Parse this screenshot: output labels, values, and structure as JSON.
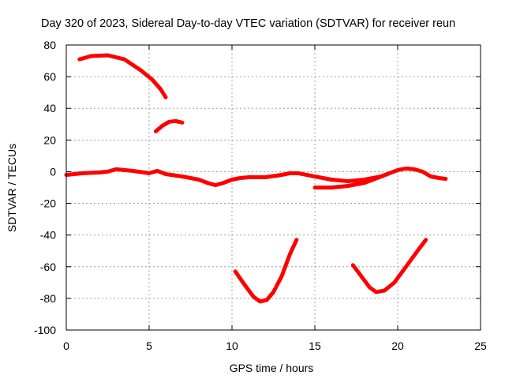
{
  "chart_data": {
    "type": "line",
    "title": "Day 320 of 2023, Sidereal Day-to-day VTEC variation (SDTVAR) for receiver reun",
    "xlabel": "GPS time / hours",
    "ylabel": "SDTVAR / TECUs",
    "xlim": [
      0,
      25
    ],
    "ylim": [
      -100,
      80
    ],
    "xticks": [
      0,
      5,
      10,
      15,
      20,
      25
    ],
    "yticks": [
      -100,
      -80,
      -60,
      -40,
      -20,
      0,
      20,
      40,
      60,
      80
    ],
    "grid": true,
    "color": "#ff0000",
    "series": [
      {
        "name": "near-zero-track",
        "x": [
          0,
          1,
          2,
          2.5,
          3,
          3.5,
          4,
          5,
          5.5,
          6,
          7,
          8,
          8.5,
          9,
          9.5,
          10,
          10.5,
          11,
          12,
          13,
          13.5,
          14,
          15,
          16,
          17,
          18,
          19,
          19.5,
          20,
          20.5,
          21,
          21.5,
          22,
          22.5,
          22.9
        ],
        "y": [
          -2,
          -1,
          -0.5,
          0,
          1.5,
          1,
          0.5,
          -1,
          0.5,
          -1.5,
          -3,
          -5,
          -7,
          -8.5,
          -7,
          -5,
          -4,
          -3.5,
          -3.5,
          -2,
          -1,
          -1,
          -3,
          -5,
          -6,
          -5,
          -3,
          -1,
          1,
          2,
          1.5,
          0,
          -3,
          -4,
          -4.5
        ]
      },
      {
        "name": "offset-track",
        "x": [
          15,
          16,
          17,
          18,
          18.5,
          19,
          19.5
        ],
        "y": [
          -10,
          -10,
          -9,
          -7,
          -5,
          -3,
          -1
        ]
      },
      {
        "name": "upper-arc-1",
        "x": [
          0.8,
          1.5,
          2.5,
          3.5,
          4.5,
          5.2,
          5.7,
          6.0
        ],
        "y": [
          71,
          73,
          73.5,
          71,
          64,
          58,
          52,
          47
        ]
      },
      {
        "name": "upper-arc-2",
        "x": [
          5.4,
          5.8,
          6.2,
          6.6,
          7.0
        ],
        "y": [
          25.5,
          29,
          31.5,
          32,
          31
        ]
      },
      {
        "name": "lower-arc-1",
        "x": [
          10.2,
          10.8,
          11.3,
          11.7,
          12.1,
          12.5,
          13.0,
          13.5,
          13.9
        ],
        "y": [
          -63,
          -72,
          -79,
          -82,
          -81,
          -76,
          -66,
          -52,
          -43
        ]
      },
      {
        "name": "lower-arc-2",
        "x": [
          17.3,
          17.8,
          18.3,
          18.7,
          19.2,
          19.8,
          20.5,
          21.2,
          21.7
        ],
        "y": [
          -59,
          -66,
          -73,
          -76,
          -75,
          -70,
          -60,
          -50,
          -43
        ]
      }
    ]
  }
}
